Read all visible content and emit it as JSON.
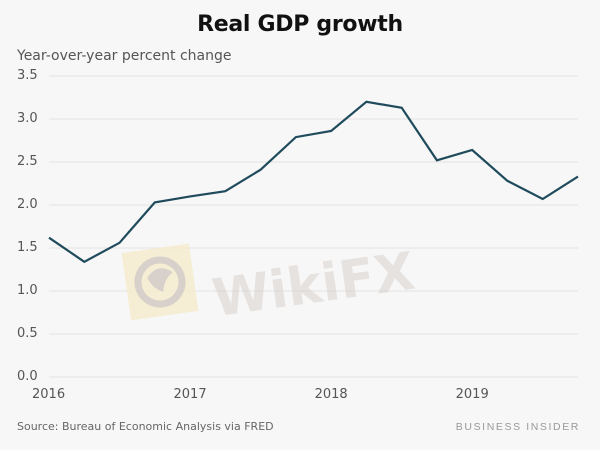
{
  "header": {
    "title": "Real GDP growth",
    "subtitle": "Year-over-year percent change"
  },
  "footer": {
    "source": "Source: Bureau of Economic Analysis via FRED",
    "brand": "BUSINESS INSIDER"
  },
  "watermark": {
    "text": "WikiFX",
    "icon": "wikifx-logo-icon"
  },
  "colors": {
    "line": "#1f4b5c",
    "background": "#f7f7f7",
    "grid": "#e3e3e3"
  },
  "chart_data": {
    "type": "line",
    "title": "Real GDP growth",
    "subtitle": "Year-over-year percent change",
    "xlabel": "",
    "ylabel": "Year-over-year percent change",
    "ylim": [
      0,
      3.5
    ],
    "xlim": [
      2016.0,
      2019.75
    ],
    "grid": true,
    "legend": "none",
    "y_ticks": [
      "0.0",
      "0.5",
      "1.0",
      "1.5",
      "2.0",
      "2.5",
      "3.0",
      "3.5"
    ],
    "x_ticks": [
      "2016",
      "2017",
      "2018",
      "2019"
    ],
    "x_tick_values": [
      2016,
      2017,
      2018,
      2019
    ],
    "series": [
      {
        "name": "Real GDP growth",
        "x": [
          2016.0,
          2016.25,
          2016.5,
          2016.75,
          2017.0,
          2017.25,
          2017.5,
          2017.75,
          2018.0,
          2018.25,
          2018.5,
          2018.75,
          2019.0,
          2019.25,
          2019.5,
          2019.75
        ],
        "values": [
          1.62,
          1.34,
          1.56,
          2.03,
          2.1,
          2.16,
          2.41,
          2.79,
          2.86,
          3.2,
          3.13,
          2.52,
          2.64,
          2.28,
          2.07,
          2.33
        ]
      }
    ],
    "source": "Source: Bureau of Economic Analysis via FRED"
  }
}
